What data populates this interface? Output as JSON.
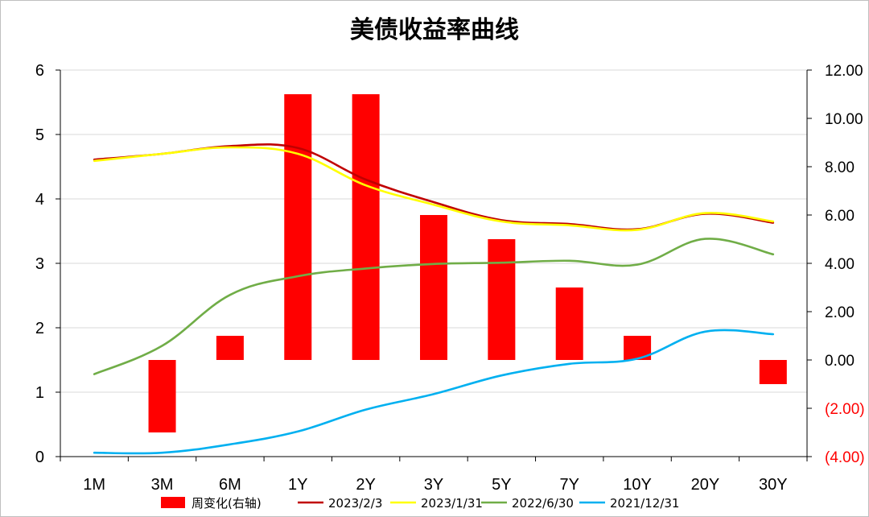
{
  "chart_data": {
    "type": "bar+line",
    "title": "美债收益率曲线",
    "categories": [
      "1M",
      "3M",
      "6M",
      "1Y",
      "2Y",
      "3Y",
      "5Y",
      "7Y",
      "10Y",
      "20Y",
      "30Y"
    ],
    "bar_series": {
      "name": "周变化(右轴)",
      "axis": "right",
      "color": "#ff0000",
      "values": [
        0,
        -3,
        1,
        11,
        11,
        6,
        5,
        3,
        1,
        0,
        -1
      ]
    },
    "line_series": [
      {
        "name": "2023/2/3",
        "color": "#c00000",
        "values": [
          4.61,
          4.7,
          4.82,
          4.79,
          4.3,
          3.95,
          3.67,
          3.61,
          3.53,
          3.77,
          3.63
        ]
      },
      {
        "name": "2023/1/31",
        "color": "#ffff00",
        "values": [
          4.59,
          4.7,
          4.8,
          4.7,
          4.21,
          3.91,
          3.65,
          3.59,
          3.52,
          3.78,
          3.65
        ]
      },
      {
        "name": "2022/6/30",
        "color": "#70ad47",
        "values": [
          1.28,
          1.72,
          2.51,
          2.8,
          2.92,
          2.99,
          3.01,
          3.04,
          2.98,
          3.38,
          3.14
        ]
      },
      {
        "name": "2021/12/31",
        "color": "#00b0f0",
        "values": [
          0.06,
          0.06,
          0.19,
          0.39,
          0.73,
          0.97,
          1.26,
          1.44,
          1.52,
          1.94,
          1.9
        ]
      }
    ],
    "left_axis": {
      "min": 0,
      "max": 6,
      "ticks": [
        "0",
        "1",
        "2",
        "3",
        "4",
        "5",
        "6"
      ]
    },
    "right_axis": {
      "min": -4,
      "max": 12,
      "ticks": [
        "(4.00)",
        "(2.00)",
        "0.00",
        "2.00",
        "4.00",
        "6.00",
        "8.00",
        "10.00",
        "12.00"
      ],
      "negative_color": "#ff0000"
    },
    "grid": true,
    "legend_position": "bottom"
  }
}
